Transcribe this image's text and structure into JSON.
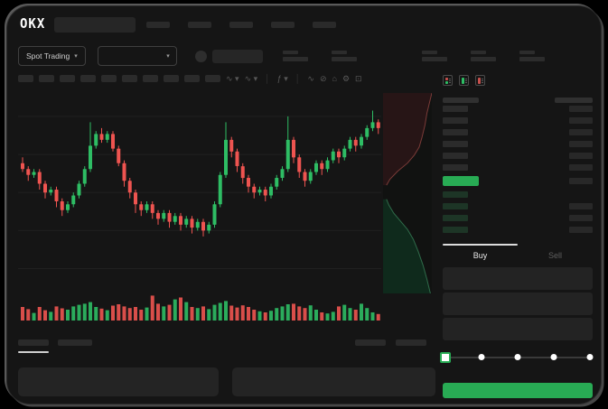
{
  "colors": {
    "bg": "#000000",
    "surface": "#151515",
    "accent_green": "#28ab54",
    "candle_up": "#2ebd64",
    "candle_down": "#ee5450",
    "bid_bar": "#1d3526",
    "spread_highlight": "#28b357",
    "depth_ask_fill": "#271516",
    "depth_ask_line": "#7a3b38",
    "depth_bid_fill": "#0f2a1c",
    "depth_bid_line": "#2f6b4a"
  },
  "header": {
    "logo_text": "OKX",
    "nav_item_count": 5
  },
  "market_bar": {
    "market_selector_label": "Spot Trading",
    "chevron": "▾",
    "stat_pair_count": 5
  },
  "chart_toolbar": {
    "pill_count": 10,
    "icons": [
      {
        "name": "interval-dropdown-icon",
        "glyph": "∿ ▾"
      },
      {
        "name": "chart-style-dropdown-icon",
        "glyph": "∿ ▾"
      },
      {
        "name": "divider",
        "glyph": "│"
      },
      {
        "name": "indicators-dropdown-icon",
        "glyph": "ƒ ▾"
      },
      {
        "name": "divider",
        "glyph": "│"
      },
      {
        "name": "line-tool-icon",
        "glyph": "∿"
      },
      {
        "name": "compare-tool-icon",
        "glyph": "⊘"
      },
      {
        "name": "snapshot-icon",
        "glyph": "⌂"
      },
      {
        "name": "settings-icon",
        "glyph": "⚙"
      },
      {
        "name": "fullscreen-icon",
        "glyph": "⊡"
      }
    ]
  },
  "order_book": {
    "view_toggles": [
      "combined-book-view",
      "bids-book-view",
      "asks-book-view"
    ],
    "ask_rows": [
      {
        "right": true
      },
      {
        "right": true
      },
      {
        "right": true
      },
      {
        "right": true
      },
      {
        "right": true
      },
      {
        "right": true
      }
    ],
    "spread_row": {
      "highlight": true,
      "right": true
    },
    "bid_rows": [
      {
        "right": false
      },
      {
        "right": true
      },
      {
        "right": true
      },
      {
        "right": true
      }
    ]
  },
  "trade_form": {
    "tabs": [
      {
        "label": "Buy",
        "active": true
      },
      {
        "label": "Sell",
        "active": false
      }
    ],
    "field_count": 3,
    "slider_stops": 5
  },
  "bottom_section": {
    "tab_count": 2,
    "action_count": 2,
    "panel_count": 2
  },
  "chart_data": {
    "type": "candlestick",
    "note": "skeleton trading UI; no numeric axis labels visible",
    "ylim": [
      30,
      96
    ],
    "grid": true,
    "gridlines": [
      88,
      75,
      62,
      49,
      36
    ],
    "candles": [
      [
        72,
        74,
        69,
        70
      ],
      [
        70,
        71,
        66,
        68
      ],
      [
        68,
        70,
        67,
        69
      ],
      [
        69,
        70,
        63,
        65
      ],
      [
        65,
        66,
        60,
        62
      ],
      [
        62,
        64,
        61,
        63
      ],
      [
        63,
        64,
        57,
        59
      ],
      [
        59,
        60,
        54,
        56
      ],
      [
        56,
        59,
        55,
        58
      ],
      [
        58,
        62,
        57,
        61
      ],
      [
        61,
        66,
        60,
        65
      ],
      [
        65,
        71,
        64,
        70
      ],
      [
        70,
        86,
        69,
        78
      ],
      [
        78,
        83,
        77,
        82
      ],
      [
        82,
        84,
        79,
        80
      ],
      [
        80,
        83,
        79,
        82
      ],
      [
        82,
        83,
        76,
        77
      ],
      [
        77,
        78,
        71,
        72
      ],
      [
        72,
        73,
        64,
        66
      ],
      [
        66,
        67,
        60,
        62
      ],
      [
        62,
        63,
        55,
        58
      ],
      [
        58,
        59,
        54,
        56
      ],
      [
        56,
        59,
        55,
        58
      ],
      [
        58,
        59,
        53,
        55
      ],
      [
        55,
        56,
        51,
        53
      ],
      [
        53,
        56,
        52,
        55
      ],
      [
        55,
        56,
        50,
        52
      ],
      [
        52,
        55,
        51,
        54
      ],
      [
        54,
        55,
        49,
        51
      ],
      [
        51,
        54,
        50,
        53
      ],
      [
        53,
        54,
        48,
        50
      ],
      [
        50,
        53,
        49,
        52
      ],
      [
        52,
        53,
        47,
        49
      ],
      [
        49,
        52,
        48,
        51
      ],
      [
        51,
        59,
        50,
        58
      ],
      [
        58,
        69,
        57,
        68
      ],
      [
        68,
        86,
        67,
        80
      ],
      [
        80,
        81,
        74,
        76
      ],
      [
        76,
        77,
        69,
        71
      ],
      [
        71,
        72,
        65,
        67
      ],
      [
        67,
        68,
        62,
        64
      ],
      [
        64,
        65,
        60,
        62
      ],
      [
        62,
        64,
        61,
        63
      ],
      [
        63,
        64,
        59,
        61
      ],
      [
        61,
        65,
        60,
        64
      ],
      [
        64,
        68,
        63,
        67
      ],
      [
        67,
        71,
        66,
        70
      ],
      [
        70,
        88,
        69,
        80
      ],
      [
        80,
        81,
        72,
        74
      ],
      [
        74,
        75,
        67,
        69
      ],
      [
        69,
        70,
        64,
        66
      ],
      [
        66,
        70,
        65,
        69
      ],
      [
        69,
        73,
        68,
        72
      ],
      [
        72,
        73,
        68,
        70
      ],
      [
        70,
        74,
        69,
        73
      ],
      [
        73,
        77,
        72,
        76
      ],
      [
        76,
        77,
        72,
        74
      ],
      [
        74,
        78,
        73,
        77
      ],
      [
        77,
        81,
        76,
        80
      ],
      [
        80,
        81,
        76,
        78
      ],
      [
        78,
        82,
        77,
        81
      ],
      [
        81,
        85,
        80,
        84
      ],
      [
        84,
        90,
        83,
        86
      ],
      [
        86,
        87,
        82,
        84
      ]
    ],
    "volumes": [
      0.5,
      0.42,
      0.28,
      0.5,
      0.38,
      0.32,
      0.52,
      0.45,
      0.4,
      0.52,
      0.58,
      0.62,
      0.68,
      0.5,
      0.44,
      0.38,
      0.55,
      0.6,
      0.52,
      0.46,
      0.5,
      0.4,
      0.48,
      0.92,
      0.62,
      0.52,
      0.58,
      0.78,
      0.85,
      0.68,
      0.5,
      0.46,
      0.52,
      0.42,
      0.58,
      0.65,
      0.72,
      0.55,
      0.48,
      0.56,
      0.5,
      0.4,
      0.34,
      0.3,
      0.36,
      0.46,
      0.52,
      0.6,
      0.62,
      0.52,
      0.46,
      0.56,
      0.4,
      0.3,
      0.26,
      0.32,
      0.52,
      0.58,
      0.46,
      0.4,
      0.62,
      0.46,
      0.3,
      0.24
    ],
    "depth": {
      "asks_curve": [
        [
          1,
          0
        ],
        [
          0.95,
          0.05
        ],
        [
          0.9,
          0.1
        ],
        [
          0.86,
          0.16
        ],
        [
          0.8,
          0.22
        ],
        [
          0.74,
          0.27
        ],
        [
          0.64,
          0.31
        ],
        [
          0.5,
          0.35
        ],
        [
          0.3,
          0.39
        ],
        [
          0.14,
          0.43
        ],
        [
          0.07,
          0.46
        ]
      ],
      "bids_curve": [
        [
          0.07,
          0.53
        ],
        [
          0.12,
          0.56
        ],
        [
          0.22,
          0.6
        ],
        [
          0.36,
          0.64
        ],
        [
          0.5,
          0.68
        ],
        [
          0.62,
          0.73
        ],
        [
          0.72,
          0.79
        ],
        [
          0.82,
          0.86
        ],
        [
          0.9,
          0.93
        ],
        [
          0.97,
          1.0
        ]
      ]
    }
  }
}
